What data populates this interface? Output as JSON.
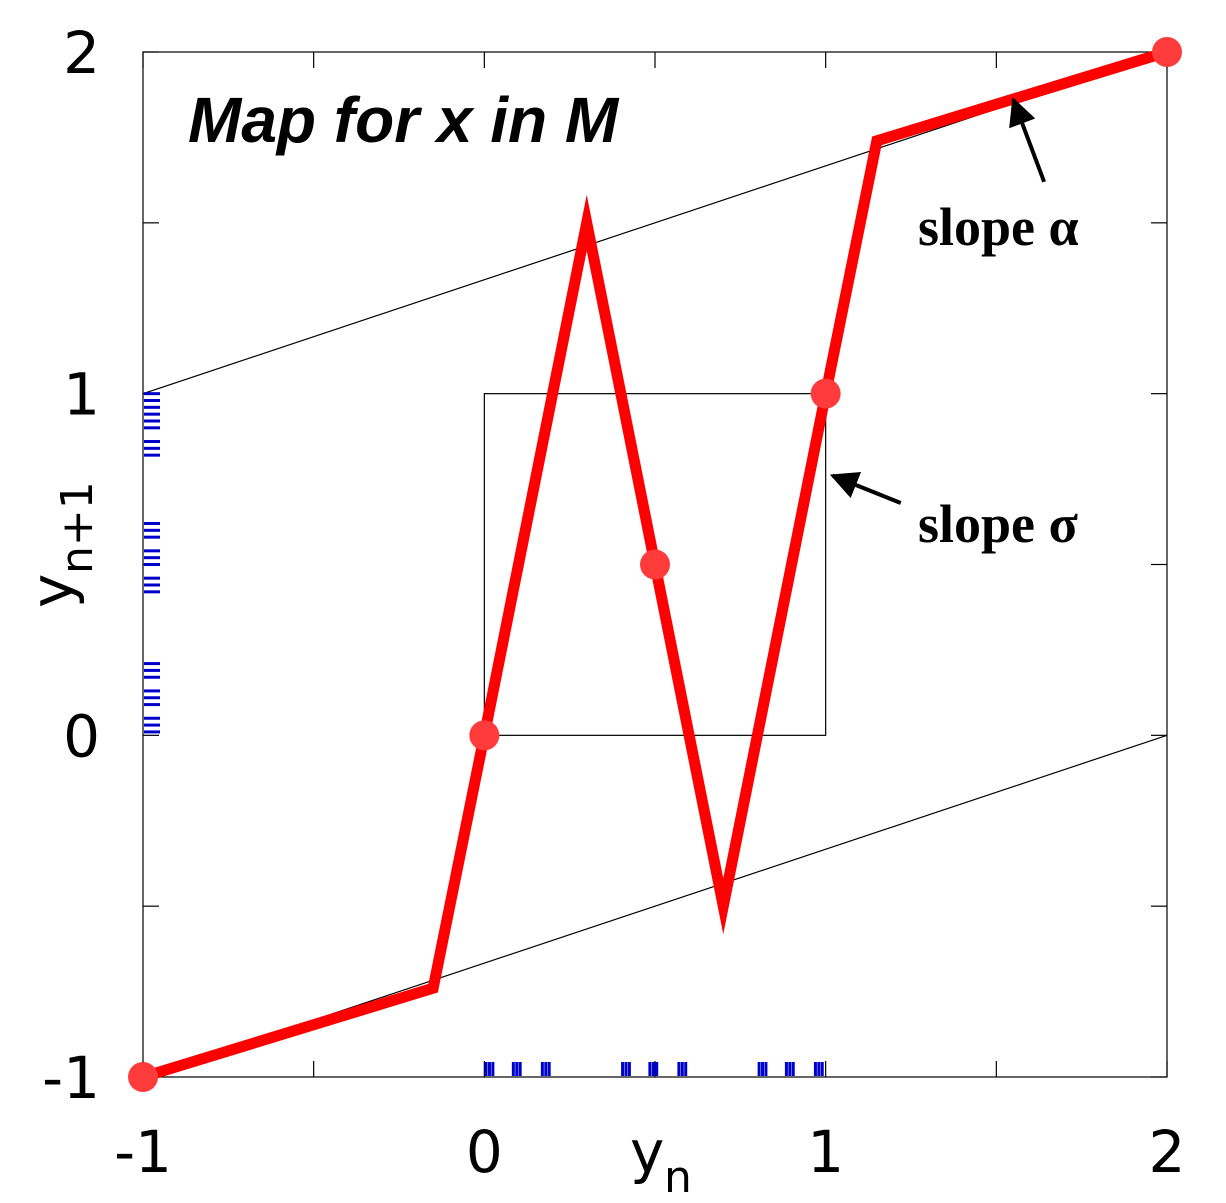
{
  "chart_data": {
    "type": "line",
    "title": "Map for x in M",
    "xlabel": {
      "main": "y",
      "sub": "n"
    },
    "ylabel": {
      "main": "y",
      "sub": "n+1"
    },
    "xlim": [
      -1,
      2
    ],
    "ylim": [
      -1,
      2
    ],
    "x_ticks": [
      -1,
      -0.5,
      0,
      0.5,
      1,
      1.5,
      2
    ],
    "x_tick_labels": [
      "-1",
      "",
      "0",
      "",
      "1",
      "",
      "2"
    ],
    "y_ticks": [
      -1,
      -0.5,
      0,
      0.5,
      1,
      1.5,
      2
    ],
    "y_tick_labels": [
      "-1",
      "",
      "0",
      "",
      "1",
      "",
      "2"
    ],
    "grid": false,
    "series": [
      {
        "color": "#ff0000",
        "points": [
          [
            -1,
            -1
          ],
          [
            -0.15,
            -0.74
          ],
          [
            0,
            0
          ],
          [
            0.3,
            1.5
          ],
          [
            0.5,
            0.5
          ],
          [
            0.7,
            -0.5
          ],
          [
            1,
            1
          ],
          [
            1.15,
            1.74
          ],
          [
            2,
            2
          ]
        ]
      }
    ],
    "reference_lines": [
      {
        "color": "#000000",
        "points": [
          [
            -1,
            1
          ],
          [
            2,
            2
          ]
        ]
      },
      {
        "color": "#000000",
        "points": [
          [
            -1,
            -1
          ],
          [
            2,
            0
          ]
        ]
      }
    ],
    "unit_square": {
      "x": [
        0,
        1
      ],
      "y": [
        0,
        1
      ],
      "color": "#000000"
    },
    "markers": {
      "color": "#ff3b3b",
      "points": [
        [
          -1,
          -1
        ],
        [
          0,
          0
        ],
        [
          0.5,
          0.5
        ],
        [
          1,
          1
        ],
        [
          2,
          2
        ]
      ]
    },
    "rug_x": {
      "color": "#0000cc",
      "values": [
        0.005,
        0.015,
        0.025,
        0.085,
        0.095,
        0.105,
        0.17,
        0.18,
        0.19,
        0.405,
        0.415,
        0.425,
        0.485,
        0.495,
        0.505,
        0.57,
        0.58,
        0.59,
        0.805,
        0.815,
        0.825,
        0.885,
        0.895,
        0.905,
        0.97,
        0.98,
        0.99
      ]
    },
    "rug_y": {
      "color": "#0000cc",
      "values": [
        0.01,
        0.03,
        0.05,
        0.09,
        0.11,
        0.13,
        0.17,
        0.19,
        0.21,
        0.42,
        0.44,
        0.46,
        0.5,
        0.52,
        0.54,
        0.58,
        0.6,
        0.62,
        0.82,
        0.84,
        0.86,
        0.9,
        0.92,
        0.94,
        0.96,
        0.98,
        1.0
      ]
    },
    "annotations": [
      {
        "text": "slope α",
        "arrow_to": [
          1.55,
          1.86
        ],
        "arrow_from": [
          1.64,
          1.62
        ]
      },
      {
        "text": "slope σ",
        "arrow_to": [
          1.02,
          0.76
        ],
        "arrow_from": [
          1.22,
          0.68
        ]
      }
    ]
  }
}
